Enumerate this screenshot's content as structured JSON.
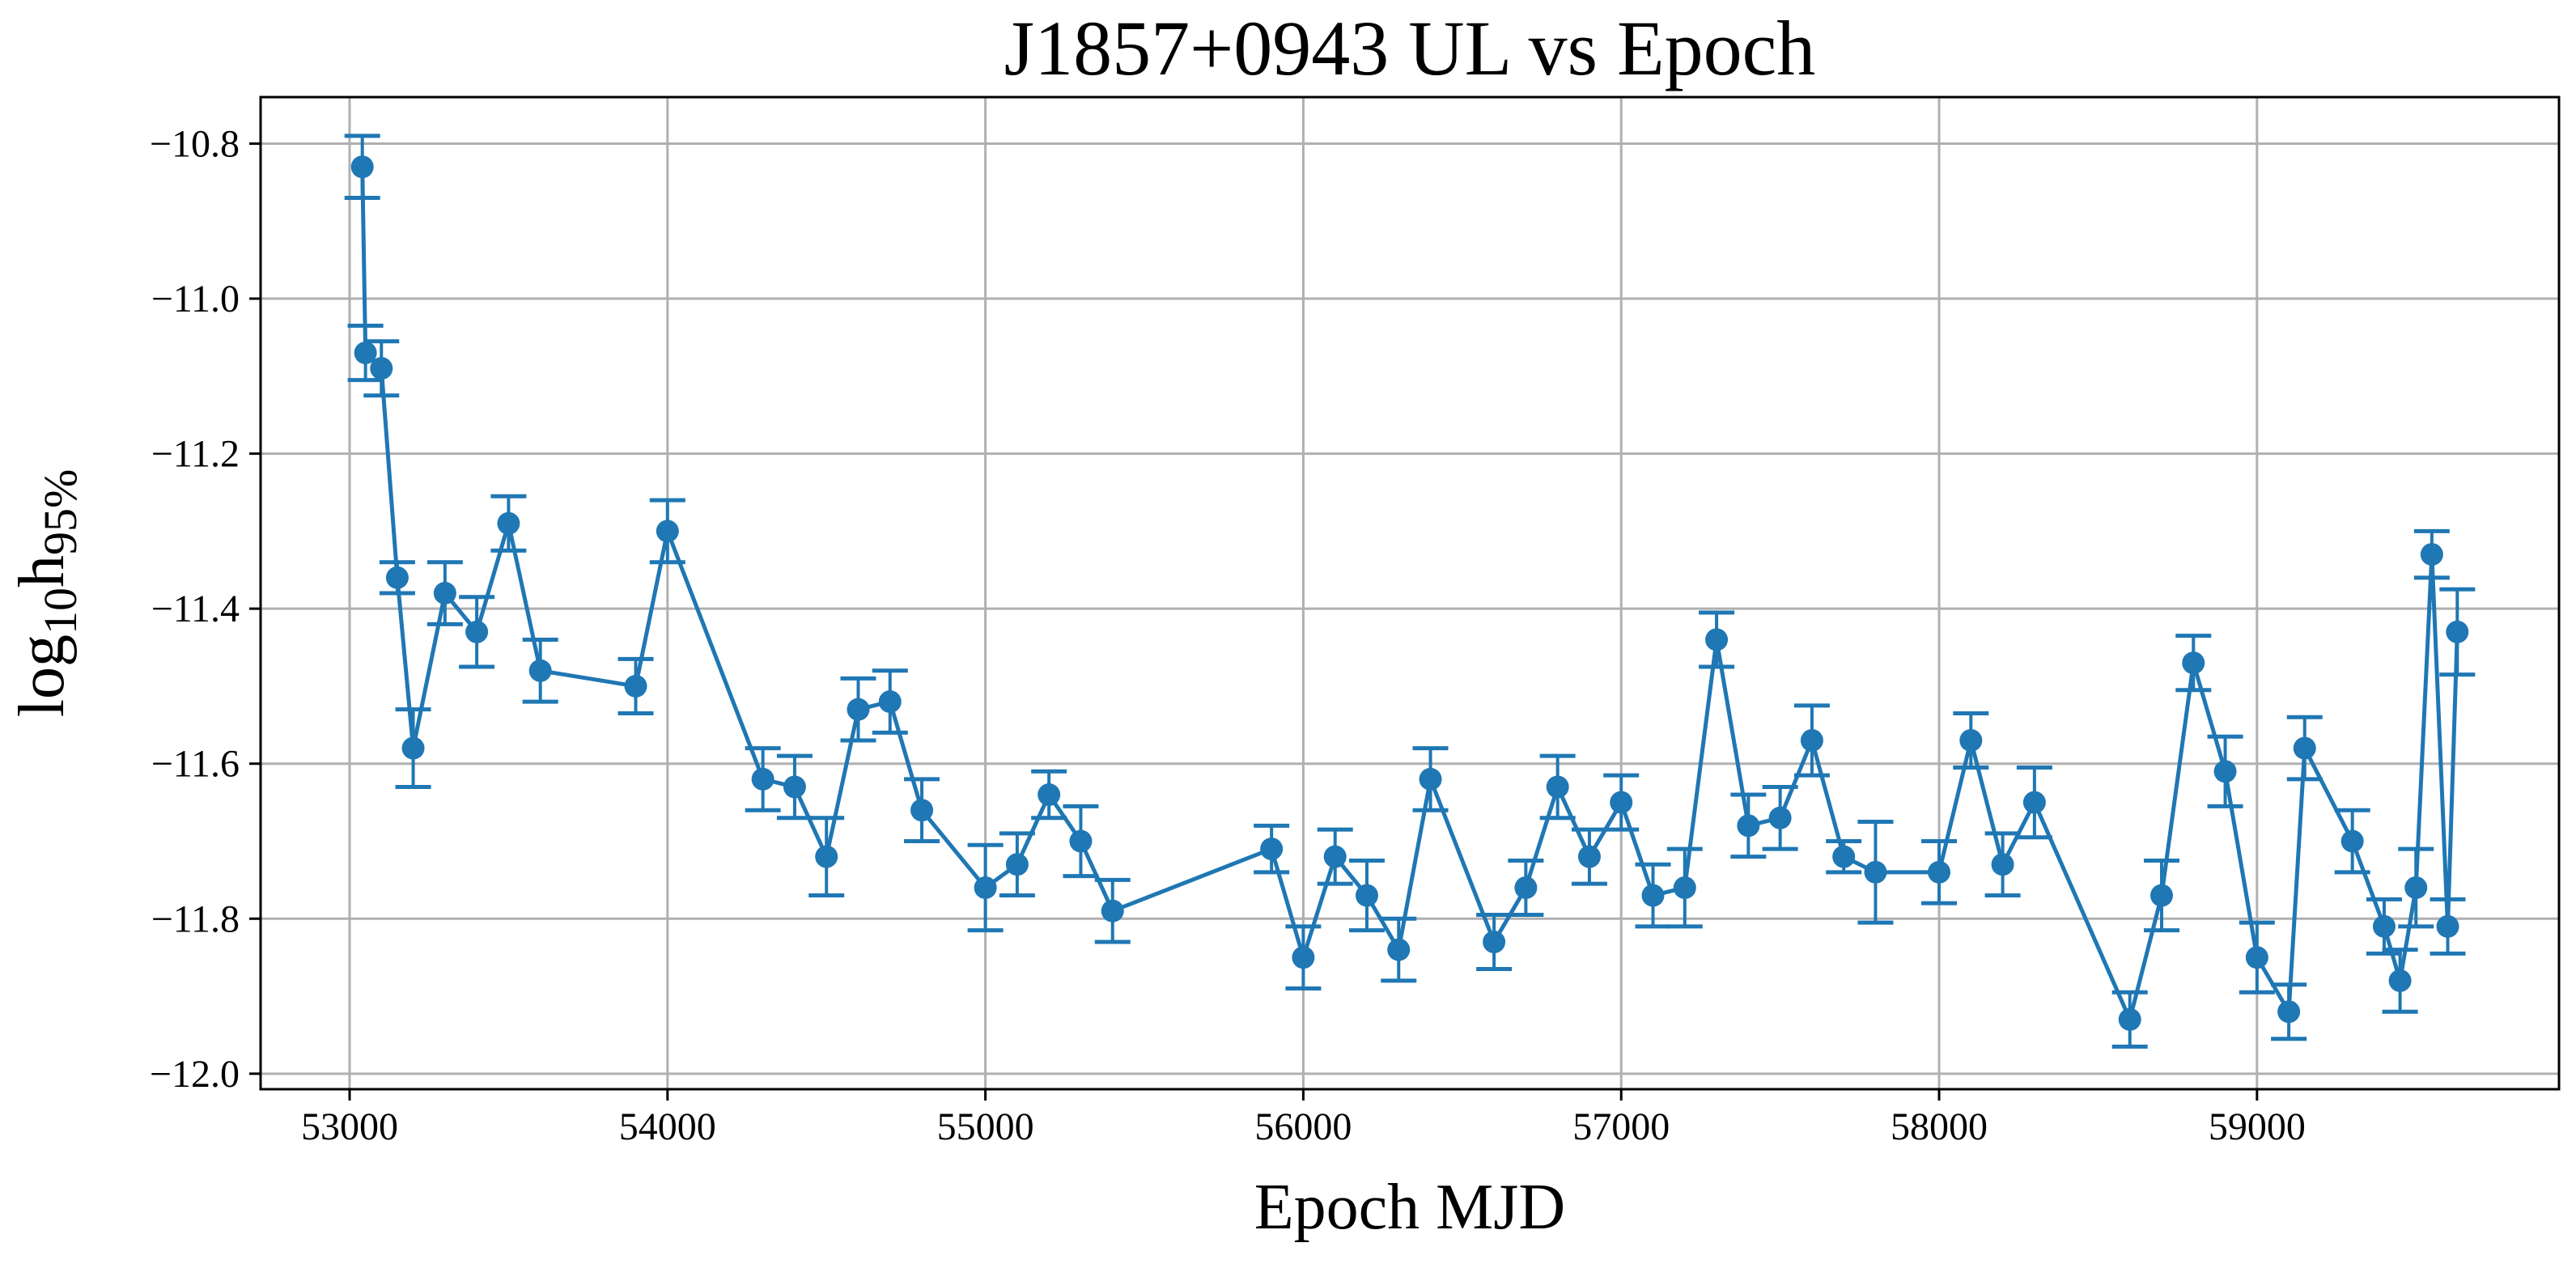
{
  "chart_data": {
    "type": "line",
    "title": "J1857+0943 UL vs Epoch",
    "xlabel": "Epoch MJD",
    "ylabel_main": "log",
    "ylabel_sub": "10",
    "ylabel_h": "h",
    "ylabel_h_sub": "95%",
    "xlim": [
      52720,
      59950
    ],
    "ylim": [
      -12.02,
      -10.74
    ],
    "xticks": [
      53000,
      54000,
      55000,
      56000,
      57000,
      58000,
      59000
    ],
    "xtick_labels": [
      "53000",
      "54000",
      "55000",
      "56000",
      "57000",
      "58000",
      "59000"
    ],
    "yticks": [
      -10.8,
      -11.0,
      -11.2,
      -11.4,
      -11.6,
      -11.8,
      -12.0
    ],
    "ytick_labels": [
      "−10.8",
      "−11.0",
      "−11.2",
      "−11.4",
      "−11.6",
      "−11.8",
      "−12.0"
    ],
    "grid": true,
    "color": "#1f77b4",
    "series": [
      {
        "name": "UL",
        "x": [
          53040,
          53050,
          53100,
          53150,
          53200,
          53300,
          53400,
          53500,
          53600,
          53900,
          54000,
          54300,
          54400,
          54500,
          54600,
          54700,
          54800,
          55000,
          55100,
          55200,
          55300,
          55400,
          55900,
          56000,
          56100,
          56200,
          56300,
          56400,
          56600,
          56700,
          56800,
          56900,
          57000,
          57100,
          57200,
          57300,
          57400,
          57500,
          57600,
          57700,
          57800,
          58000,
          58100,
          58200,
          58300,
          58600,
          58700,
          58800,
          58900,
          59000,
          59100,
          59150,
          59300,
          59400,
          59450,
          59500,
          59550,
          59600,
          59630
        ],
        "y": [
          -10.83,
          -11.07,
          -11.09,
          -11.36,
          -11.58,
          -11.38,
          -11.43,
          -11.29,
          -11.48,
          -11.5,
          -11.3,
          -11.62,
          -11.63,
          -11.72,
          -11.53,
          -11.52,
          -11.66,
          -11.76,
          -11.73,
          -11.64,
          -11.7,
          -11.79,
          -11.71,
          -11.85,
          -11.72,
          -11.77,
          -11.84,
          -11.62,
          -11.83,
          -11.76,
          -11.63,
          -11.72,
          -11.65,
          -11.77,
          -11.76,
          -11.44,
          -11.68,
          -11.67,
          -11.57,
          -11.72,
          -11.74,
          -11.74,
          -11.57,
          -11.73,
          -11.65,
          -11.93,
          -11.77,
          -11.47,
          -11.61,
          -11.85,
          -11.92,
          -11.58,
          -11.7,
          -11.81,
          -11.88,
          -11.76,
          -11.33,
          -11.81,
          -11.43
        ],
        "err": [
          0.04,
          0.035,
          0.035,
          0.02,
          0.05,
          0.04,
          0.045,
          0.035,
          0.04,
          0.035,
          0.04,
          0.04,
          0.04,
          0.05,
          0.04,
          0.04,
          0.04,
          0.055,
          0.04,
          0.03,
          0.045,
          0.04,
          0.03,
          0.04,
          0.035,
          0.045,
          0.04,
          0.04,
          0.035,
          0.035,
          0.04,
          0.035,
          0.035,
          0.04,
          0.05,
          0.035,
          0.04,
          0.04,
          0.045,
          0.02,
          0.065,
          0.04,
          0.035,
          0.04,
          0.045,
          0.035,
          0.045,
          0.035,
          0.045,
          0.045,
          0.035,
          0.04,
          0.04,
          0.035,
          0.04,
          0.05,
          0.03,
          0.035,
          0.055
        ]
      }
    ]
  }
}
